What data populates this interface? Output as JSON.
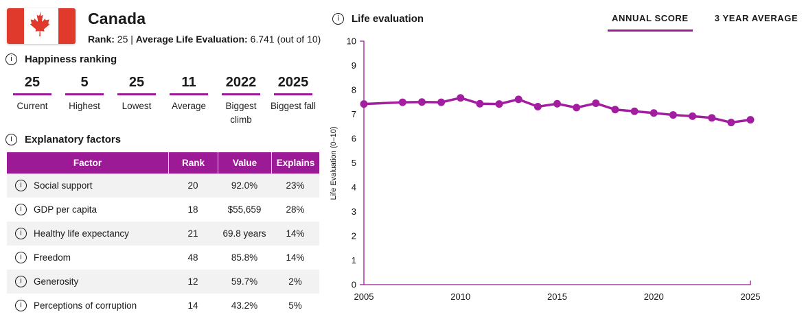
{
  "country": {
    "name": "Canada",
    "flag": "canada-flag",
    "subtitle": {
      "rank_label": "Rank:",
      "rank_value": "25",
      "divider": "|",
      "avg_label": "Average Life Evaluation:",
      "avg_value": "6.741",
      "avg_suffix": "(out of 10)"
    }
  },
  "happiness_ranking": {
    "title": "Happiness ranking",
    "info_icon_glyph": "i",
    "stats": [
      {
        "value": "25",
        "label": "Current"
      },
      {
        "value": "5",
        "label": "Highest"
      },
      {
        "value": "25",
        "label": "Lowest"
      },
      {
        "value": "11",
        "label": "Average"
      },
      {
        "value": "2022",
        "label": "Biggest climb"
      },
      {
        "value": "2025",
        "label": "Biggest fall"
      }
    ]
  },
  "explanatory_factors": {
    "title": "Explanatory factors",
    "columns": [
      "Factor",
      "Rank",
      "Value",
      "Explains"
    ],
    "rows": [
      {
        "factor": "Social support",
        "rank": "20",
        "value": "92.0%",
        "explains": "23%"
      },
      {
        "factor": "GDP per capita",
        "rank": "18",
        "value": "$55,659",
        "explains": "28%"
      },
      {
        "factor": "Healthy life expectancy",
        "rank": "21",
        "value": "69.8 years",
        "explains": "14%"
      },
      {
        "factor": "Freedom",
        "rank": "48",
        "value": "85.8%",
        "explains": "14%"
      },
      {
        "factor": "Generosity",
        "rank": "12",
        "value": "59.7%",
        "explains": "2%"
      },
      {
        "factor": "Perceptions of corruption",
        "rank": "14",
        "value": "43.2%",
        "explains": "5%"
      }
    ]
  },
  "chart_header": {
    "title": "Life evaluation",
    "tabs": [
      {
        "label": "ANNUAL SCORE",
        "active": true
      },
      {
        "label": "3 YEAR AVERAGE",
        "active": false
      }
    ]
  },
  "chart_data": {
    "type": "line",
    "title": "Life evaluation",
    "xlabel": "",
    "ylabel": "Life Evaluation (0–10)",
    "xlim": [
      2005,
      2025
    ],
    "ylim": [
      0,
      10
    ],
    "x_ticks": [
      2005,
      2010,
      2015,
      2020,
      2025
    ],
    "y_ticks": [
      0,
      1,
      2,
      3,
      4,
      5,
      6,
      7,
      8,
      9,
      10
    ],
    "grid": false,
    "legend_position": "none",
    "series": [
      {
        "name": "Annual score",
        "x": [
          2005,
          2007,
          2008,
          2009,
          2010,
          2011,
          2012,
          2013,
          2014,
          2015,
          2016,
          2017,
          2018,
          2019,
          2020,
          2021,
          2022,
          2023,
          2024,
          2025
        ],
        "y": [
          7.42,
          7.49,
          7.5,
          7.49,
          7.67,
          7.43,
          7.42,
          7.61,
          7.31,
          7.43,
          7.27,
          7.45,
          7.19,
          7.12,
          7.05,
          6.97,
          6.92,
          6.85,
          6.66,
          6.77
        ]
      }
    ]
  },
  "colors": {
    "accent": "#9c1a96",
    "line": "#a21da0",
    "row_alt": "#f2f2f2",
    "text": "#1a1a1a",
    "flag_red": "#e03a2c"
  }
}
